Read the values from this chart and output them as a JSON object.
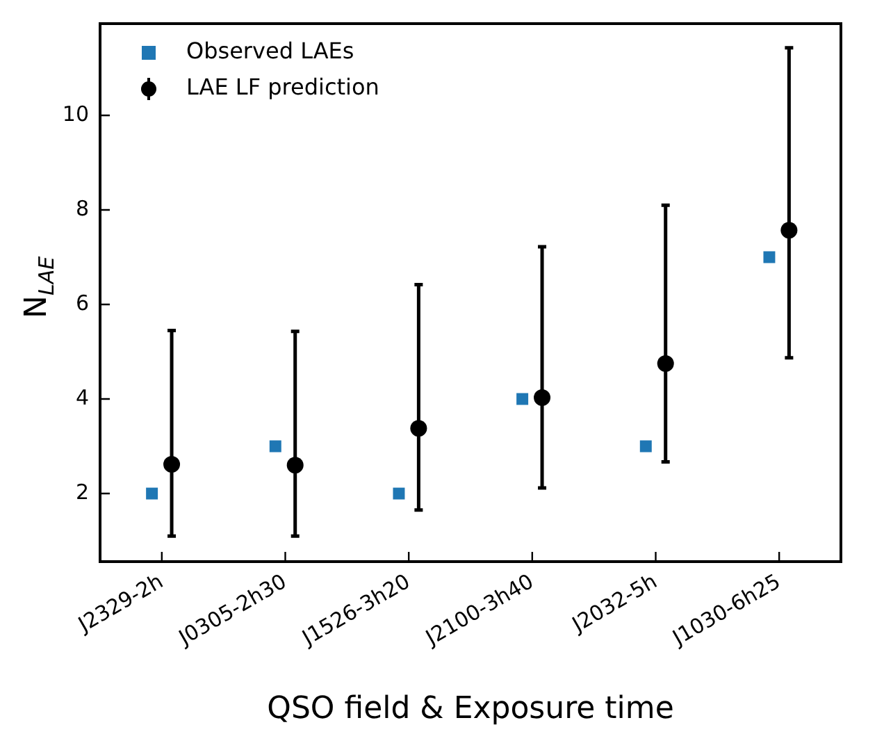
{
  "chart_data": {
    "type": "scatter",
    "xlabel": "QSO field & Exposure time",
    "ylabel": "N$_{LAE}$",
    "categories": [
      "J2329-2h",
      "J0305-2h30",
      "J1526-3h20",
      "J2100-3h40",
      "J2032-5h",
      "J1030-6h25"
    ],
    "ylim": [
      0.56,
      11.94
    ],
    "yticks": [
      2,
      4,
      6,
      8,
      10
    ],
    "grid": false,
    "legend": "top left",
    "series": [
      {
        "name": "Observed LAEs",
        "color": "#1f77b4",
        "marker": "square",
        "values": [
          2,
          3,
          2,
          4,
          3,
          7
        ]
      },
      {
        "name": "LAE LF prediction",
        "color": "#000000",
        "marker": "circle",
        "values": [
          2.62,
          2.6,
          3.38,
          4.03,
          4.75,
          7.57
        ],
        "errors": [
          [
            1.1,
            5.45
          ],
          [
            1.1,
            5.43
          ],
          [
            1.65,
            6.42
          ],
          [
            2.12,
            7.22
          ],
          [
            2.67,
            8.1
          ],
          [
            4.87,
            11.43
          ]
        ]
      }
    ]
  }
}
